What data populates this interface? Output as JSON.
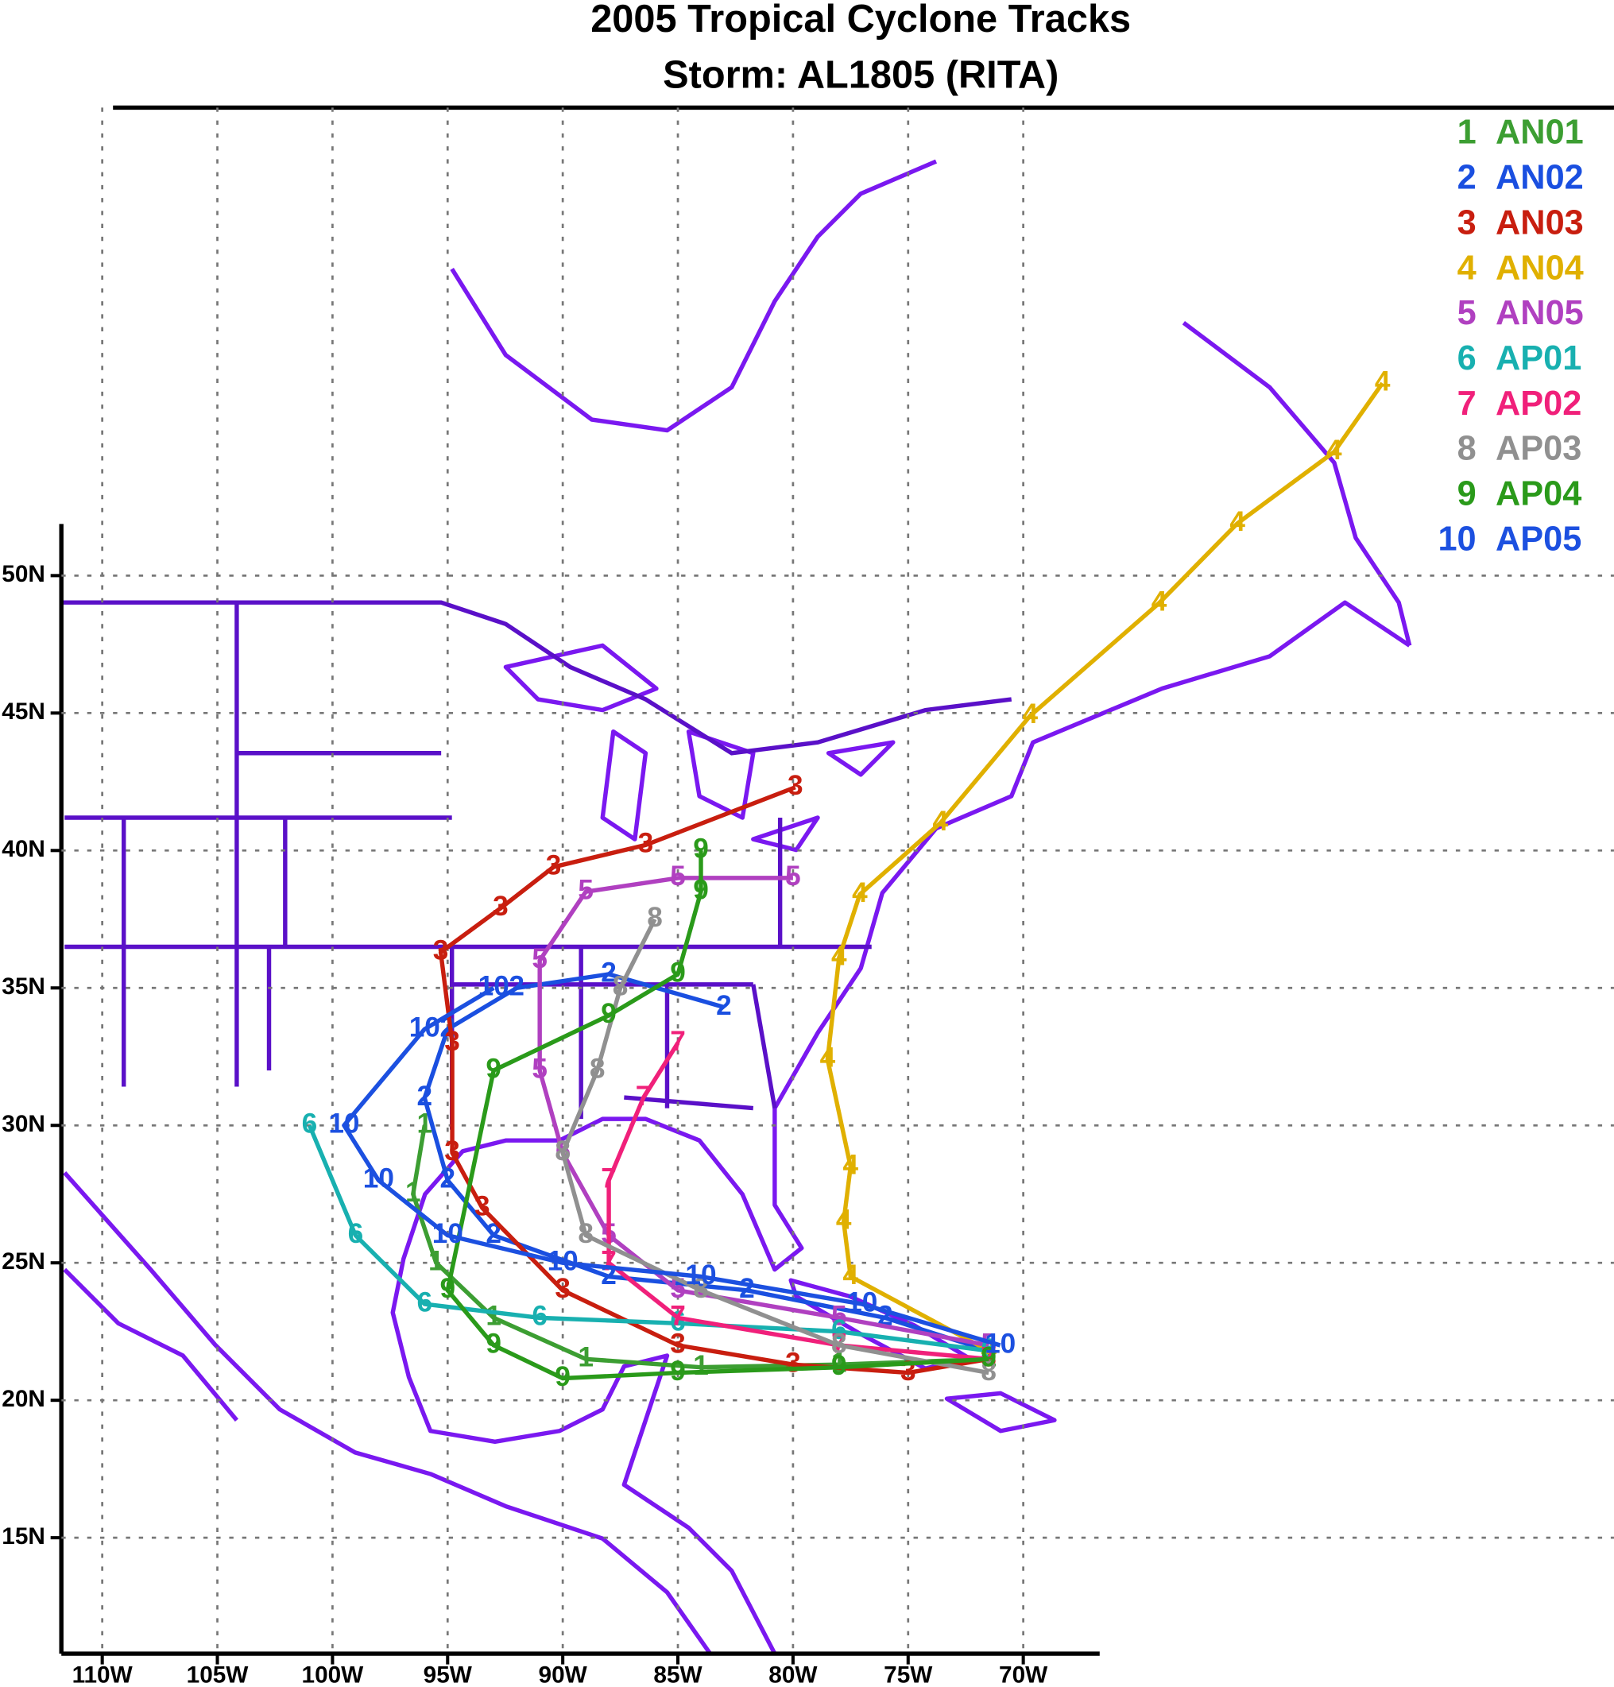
{
  "chart_data": {
    "type": "map",
    "title": "2005 Tropical Cyclone Tracks",
    "subtitle": "Storm: AL1805 (RITA)",
    "xticks": [
      {
        "value": -110,
        "label": "110W"
      },
      {
        "value": -105,
        "label": "105W"
      },
      {
        "value": -100,
        "label": "100W"
      },
      {
        "value": -95,
        "label": "95W"
      },
      {
        "value": -90,
        "label": "90W"
      },
      {
        "value": -85,
        "label": "85W"
      },
      {
        "value": -80,
        "label": "80W"
      },
      {
        "value": -75,
        "label": "75W"
      },
      {
        "value": -70,
        "label": "70W"
      }
    ],
    "yticks": [
      {
        "value": 15,
        "label": "15N"
      },
      {
        "value": 20,
        "label": "20N"
      },
      {
        "value": 25,
        "label": "25N"
      },
      {
        "value": 30,
        "label": "30N"
      },
      {
        "value": 35,
        "label": "35N"
      },
      {
        "value": 40,
        "label": "40N"
      },
      {
        "value": 45,
        "label": "45N"
      },
      {
        "value": 50,
        "label": "50N"
      }
    ],
    "grid": true,
    "series": [
      {
        "name": "AN01",
        "label": "1",
        "color": "#3c9e32",
        "lon": [
          -71.5,
          -78,
          -84,
          -89,
          -93,
          -95.5,
          -96.5,
          -96
        ],
        "lat": [
          21.5,
          21.3,
          21.2,
          21.5,
          23,
          25,
          27.5,
          30
        ]
      },
      {
        "name": "AN02",
        "label": "2",
        "color": "#1a4fe0",
        "lon": [
          -71.5,
          -76,
          -82,
          -88,
          -93,
          -95,
          -96,
          -95,
          -92,
          -88,
          -83
        ],
        "lat": [
          21.8,
          23,
          24,
          24.5,
          26,
          28,
          31,
          33.5,
          35,
          35.5,
          34.3
        ]
      },
      {
        "name": "AN03",
        "label": "3",
        "color": "#c81e0f",
        "lon": [
          -71.5,
          -75,
          -80,
          -85,
          -90,
          -93.5,
          -94.8,
          -94.8,
          -95.3,
          -92.7,
          -90.4,
          -86.4,
          -79.9
        ],
        "lat": [
          21.5,
          21,
          21.3,
          22,
          24,
          27,
          29,
          33,
          36.3,
          37.9,
          39.4,
          40.2,
          42.3
        ]
      },
      {
        "name": "AN04",
        "label": "4",
        "color": "#e0b000",
        "lon": [
          -71.5,
          -77.5,
          -77.8,
          -77.5,
          -78.5,
          -78,
          -77.1,
          -73.6,
          -69.7,
          -64.1,
          -60.7,
          -56.5,
          -54.4
        ],
        "lat": [
          21.8,
          24.5,
          26.5,
          28.5,
          32.4,
          36.1,
          38.4,
          41,
          44.9,
          49,
          51.9,
          54.5,
          57
        ]
      },
      {
        "name": "AN05",
        "label": "5",
        "color": "#b040c0",
        "lon": [
          -71.5,
          -78,
          -85,
          -88,
          -90,
          -91,
          -91,
          -89,
          -85,
          -80
        ],
        "lat": [
          22,
          23,
          24,
          26,
          29,
          32,
          36,
          38.5,
          39,
          39
        ]
      },
      {
        "name": "AP01",
        "label": "6",
        "color": "#18b0b0",
        "lon": [
          -71.5,
          -78,
          -85,
          -91,
          -96,
          -99,
          -101
        ],
        "lat": [
          21.8,
          22.5,
          22.8,
          23,
          23.5,
          26,
          30
        ]
      },
      {
        "name": "AP02",
        "label": "7",
        "color": "#f0207a",
        "lon": [
          -71.5,
          -78,
          -85,
          -88,
          -88,
          -86.5,
          -85
        ],
        "lat": [
          21.5,
          22,
          23,
          25,
          28,
          31,
          33
        ]
      },
      {
        "name": "AP03",
        "label": "8",
        "color": "#909090",
        "lon": [
          -71.5,
          -78,
          -84,
          -89,
          -90,
          -88.5,
          -87.5,
          -86
        ],
        "lat": [
          21,
          22,
          24,
          26,
          29,
          32,
          35,
          37.5
        ]
      },
      {
        "name": "AP04",
        "label": "9",
        "color": "#2a9a1a",
        "lon": [
          -71.5,
          -78,
          -85,
          -90,
          -93,
          -95,
          -93,
          -88,
          -85,
          -84,
          -84
        ],
        "lat": [
          21.5,
          21.2,
          21,
          20.8,
          22,
          24,
          32,
          34,
          35.5,
          38.5,
          40
        ]
      },
      {
        "name": "AP05",
        "label": "10",
        "color": "#1c50e0",
        "lon": [
          -71,
          -77,
          -84,
          -90,
          -95,
          -98,
          -99.5,
          -96,
          -93
        ],
        "lat": [
          22,
          23.5,
          24.5,
          25,
          26,
          28,
          30,
          33.5,
          35
        ]
      }
    ]
  }
}
